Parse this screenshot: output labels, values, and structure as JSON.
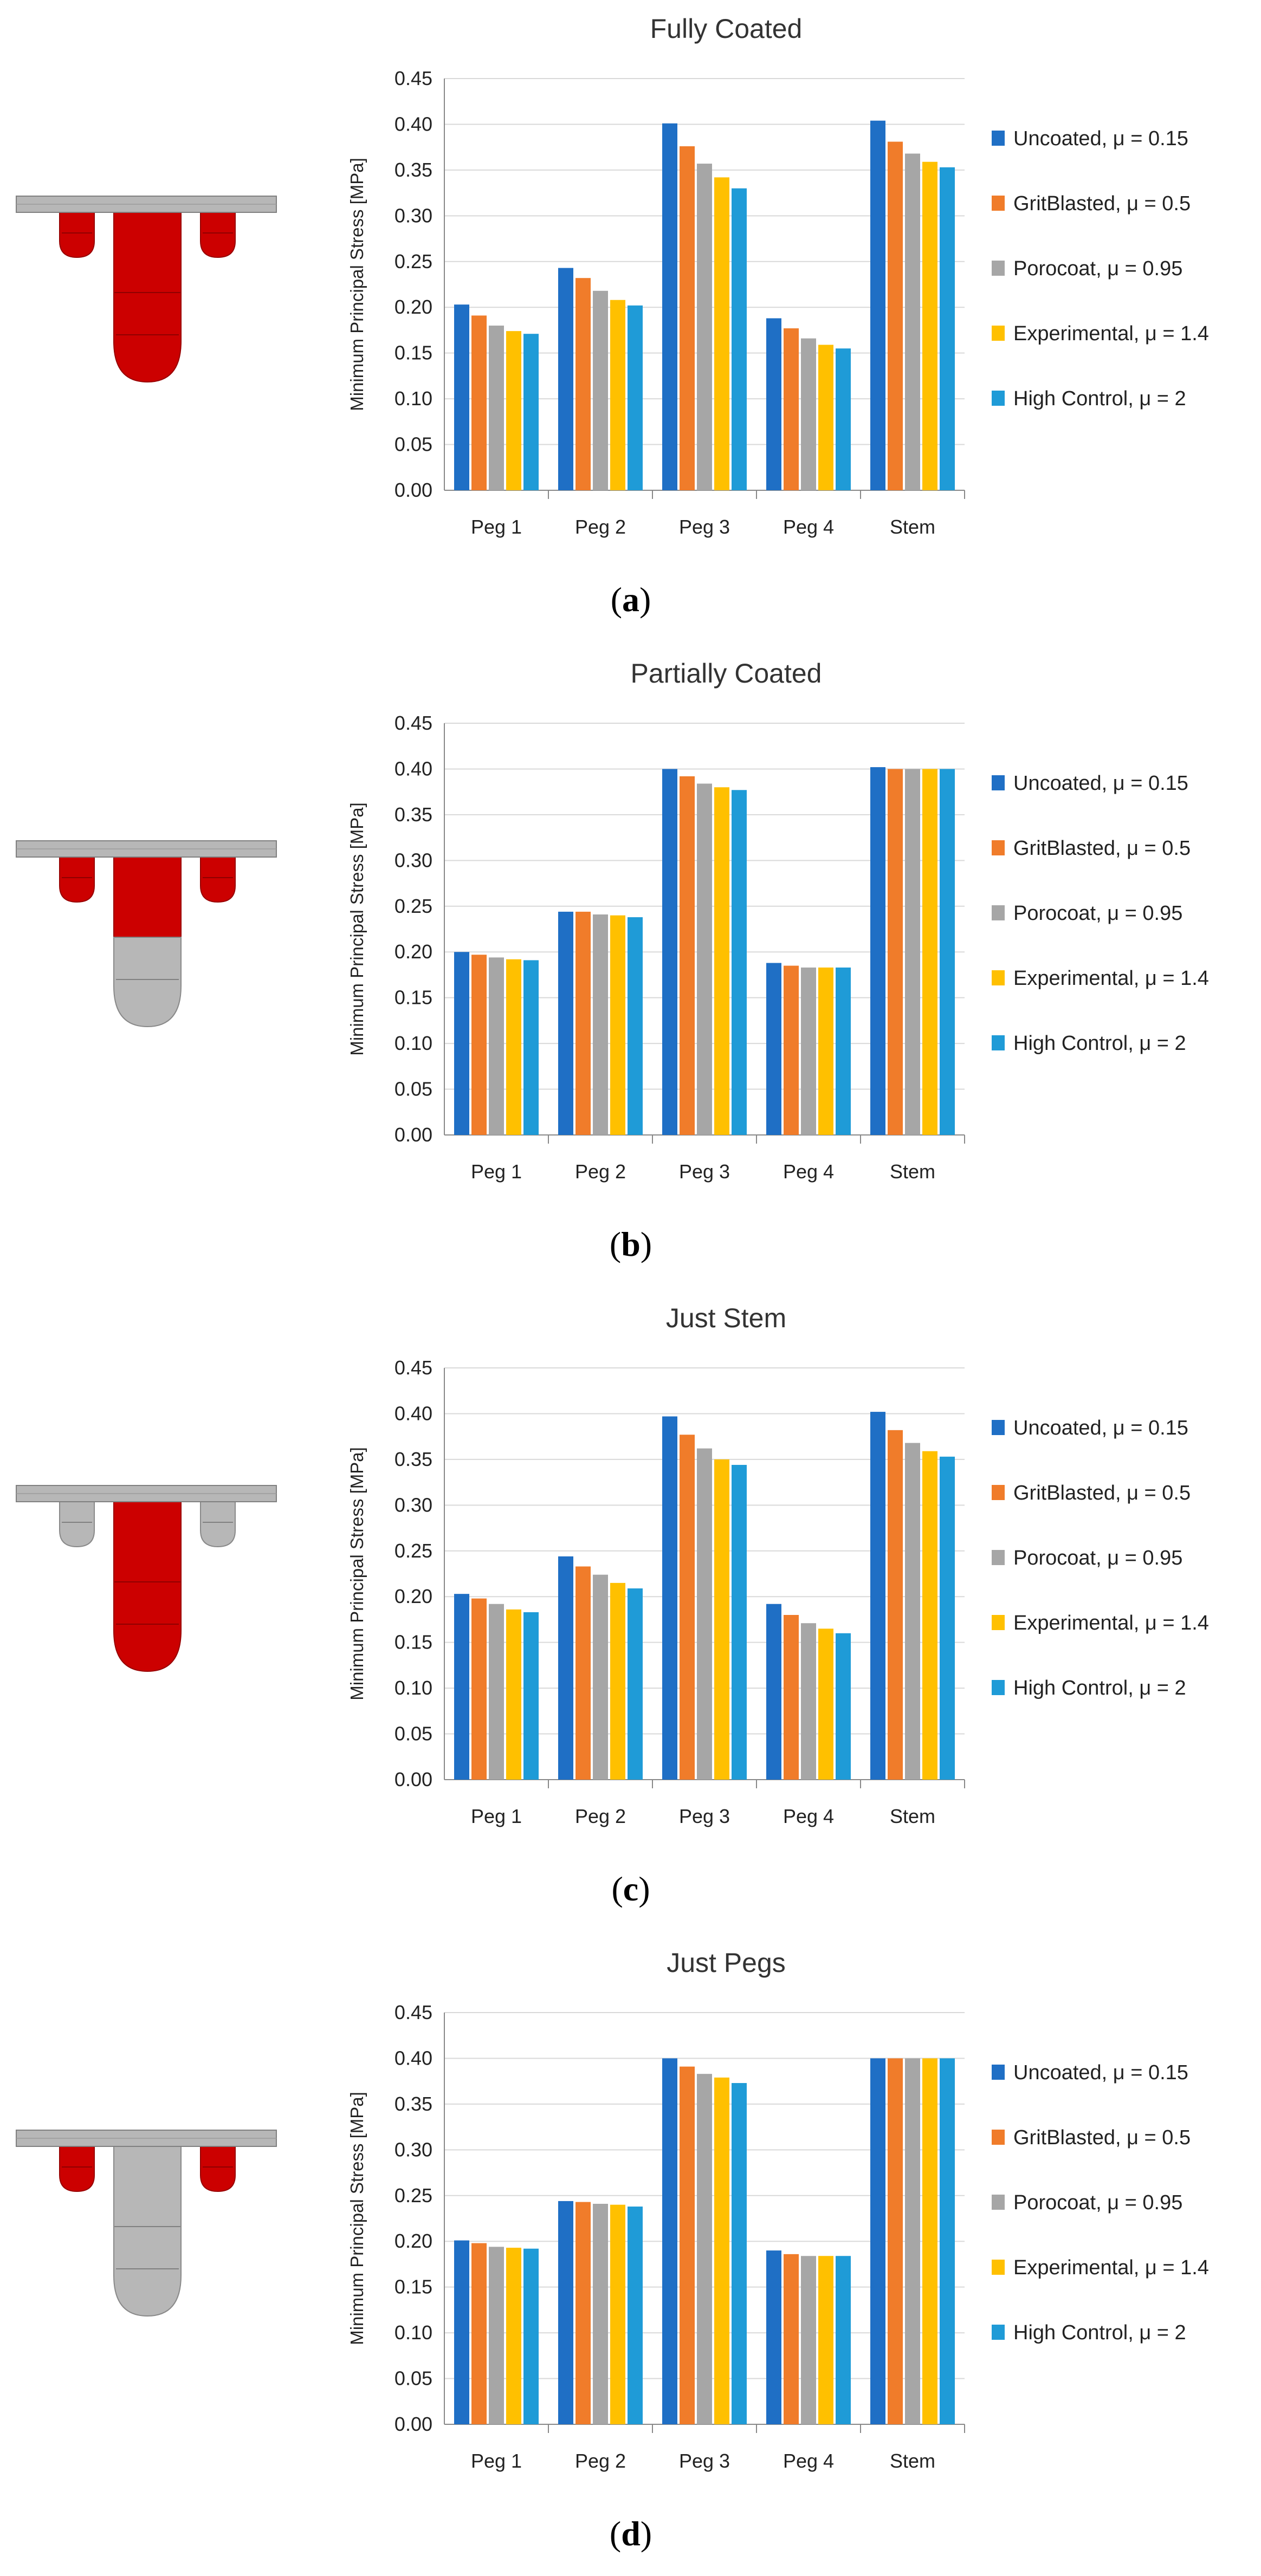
{
  "panels": [
    {
      "label": "a",
      "implant": {
        "plate": "grey",
        "pegs": "red",
        "stem_top": "red",
        "stem_bottom": "red"
      },
      "chart_data": {
        "type": "bar",
        "title": "Fully Coated",
        "ylabel": "Minimum Principal Stress [MPa]",
        "xlabel": "",
        "ylim": [
          0,
          0.45
        ],
        "yticks": [
          "0.00",
          "0.05",
          "0.10",
          "0.15",
          "0.20",
          "0.25",
          "0.30",
          "0.35",
          "0.40",
          "0.45"
        ],
        "categories": [
          "Peg 1",
          "Peg 2",
          "Peg 3",
          "Peg 4",
          "Stem"
        ],
        "legend_position": "right",
        "series": [
          {
            "name": "Uncoated, μ = 0.15",
            "values": [
              0.203,
              0.243,
              0.401,
              0.188,
              0.404
            ]
          },
          {
            "name": "GritBlasted, μ = 0.5",
            "values": [
              0.191,
              0.232,
              0.376,
              0.177,
              0.381
            ]
          },
          {
            "name": "Porocoat, μ = 0.95",
            "values": [
              0.18,
              0.218,
              0.357,
              0.166,
              0.368
            ]
          },
          {
            "name": "Experimental, μ = 1.4",
            "values": [
              0.174,
              0.208,
              0.342,
              0.159,
              0.359
            ]
          },
          {
            "name": "High Control, μ = 2",
            "values": [
              0.171,
              0.202,
              0.33,
              0.155,
              0.353
            ]
          }
        ]
      }
    },
    {
      "label": "b",
      "implant": {
        "plate": "grey",
        "pegs": "red",
        "stem_top": "red",
        "stem_bottom": "grey"
      },
      "chart_data": {
        "type": "bar",
        "title": "Partially Coated",
        "ylabel": "Minimum Principal Stress [MPa]",
        "xlabel": "",
        "ylim": [
          0,
          0.45
        ],
        "yticks": [
          "0.00",
          "0.05",
          "0.10",
          "0.15",
          "0.20",
          "0.25",
          "0.30",
          "0.35",
          "0.40",
          "0.45"
        ],
        "categories": [
          "Peg 1",
          "Peg 2",
          "Peg 3",
          "Peg 4",
          "Stem"
        ],
        "legend_position": "right",
        "series": [
          {
            "name": "Uncoated, μ = 0.15",
            "values": [
              0.2,
              0.244,
              0.4,
              0.188,
              0.402
            ]
          },
          {
            "name": "GritBlasted, μ = 0.5",
            "values": [
              0.197,
              0.244,
              0.392,
              0.185,
              0.4
            ]
          },
          {
            "name": "Porocoat, μ = 0.95",
            "values": [
              0.194,
              0.241,
              0.384,
              0.183,
              0.4
            ]
          },
          {
            "name": "Experimental, μ = 1.4",
            "values": [
              0.192,
              0.24,
              0.38,
              0.183,
              0.4
            ]
          },
          {
            "name": "High Control, μ = 2",
            "values": [
              0.191,
              0.238,
              0.377,
              0.183,
              0.4
            ]
          }
        ]
      }
    },
    {
      "label": "c",
      "implant": {
        "plate": "grey",
        "pegs": "grey",
        "stem_top": "red",
        "stem_bottom": "red"
      },
      "chart_data": {
        "type": "bar",
        "title": "Just Stem",
        "ylabel": "Minimum Principal Stress [MPa]",
        "xlabel": "",
        "ylim": [
          0,
          0.45
        ],
        "yticks": [
          "0.00",
          "0.05",
          "0.10",
          "0.15",
          "0.20",
          "0.25",
          "0.30",
          "0.35",
          "0.40",
          "0.45"
        ],
        "categories": [
          "Peg 1",
          "Peg 2",
          "Peg 3",
          "Peg 4",
          "Stem"
        ],
        "legend_position": "right",
        "series": [
          {
            "name": "Uncoated, μ = 0.15",
            "values": [
              0.203,
              0.244,
              0.397,
              0.192,
              0.402
            ]
          },
          {
            "name": "GritBlasted, μ = 0.5",
            "values": [
              0.198,
              0.233,
              0.377,
              0.18,
              0.382
            ]
          },
          {
            "name": "Porocoat, μ = 0.95",
            "values": [
              0.192,
              0.224,
              0.362,
              0.171,
              0.368
            ]
          },
          {
            "name": "Experimental, μ = 1.4",
            "values": [
              0.186,
              0.215,
              0.35,
              0.165,
              0.359
            ]
          },
          {
            "name": "High Control, μ = 2",
            "values": [
              0.183,
              0.209,
              0.344,
              0.16,
              0.353
            ]
          }
        ]
      }
    },
    {
      "label": "d",
      "implant": {
        "plate": "grey",
        "pegs": "red",
        "stem_top": "grey",
        "stem_bottom": "grey"
      },
      "chart_data": {
        "type": "bar",
        "title": "Just Pegs",
        "ylabel": "Minimum Principal Stress [MPa]",
        "xlabel": "",
        "ylim": [
          0,
          0.45
        ],
        "yticks": [
          "0.00",
          "0.05",
          "0.10",
          "0.15",
          "0.20",
          "0.25",
          "0.30",
          "0.35",
          "0.40",
          "0.45"
        ],
        "categories": [
          "Peg 1",
          "Peg 2",
          "Peg 3",
          "Peg 4",
          "Stem"
        ],
        "legend_position": "right",
        "series": [
          {
            "name": "Uncoated, μ = 0.15",
            "values": [
              0.201,
              0.244,
              0.4,
              0.19,
              0.4
            ]
          },
          {
            "name": "GritBlasted, μ = 0.5",
            "values": [
              0.198,
              0.243,
              0.391,
              0.186,
              0.4
            ]
          },
          {
            "name": "Porocoat, μ = 0.95",
            "values": [
              0.194,
              0.241,
              0.383,
              0.184,
              0.4
            ]
          },
          {
            "name": "Experimental, μ = 1.4",
            "values": [
              0.193,
              0.24,
              0.379,
              0.184,
              0.4
            ]
          },
          {
            "name": "High Control, μ = 2",
            "values": [
              0.192,
              0.238,
              0.373,
              0.184,
              0.4
            ]
          }
        ]
      }
    }
  ],
  "colors": {
    "series": [
      "#1f6fc5",
      "#f07c2a",
      "#a6a6a6",
      "#ffc000",
      "#1f9bd7"
    ],
    "red": "#cc0000",
    "grey": "#b7b7b7",
    "axis": "#888888",
    "grid": "#d9d9d9"
  }
}
